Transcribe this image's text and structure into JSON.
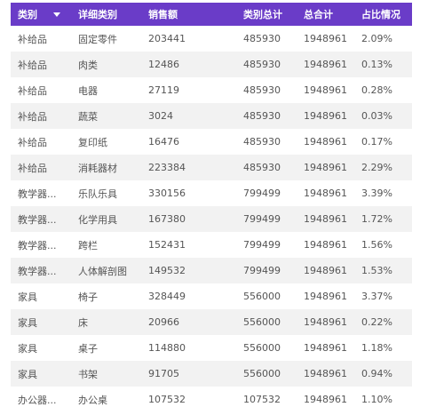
{
  "header": {
    "category": "类别",
    "detail_category": "详细类别",
    "sales": "销售额",
    "category_total": "类别总计",
    "grand_total": "总合计",
    "ratio": "占比情况"
  },
  "rows": [
    {
      "category": "补给品",
      "detail": "固定零件",
      "sales": "203441",
      "category_total": "485930",
      "grand_total": "1948961",
      "ratio": "2.09%"
    },
    {
      "category": "补给品",
      "detail": "肉类",
      "sales": "12486",
      "category_total": "485930",
      "grand_total": "1948961",
      "ratio": "0.13%"
    },
    {
      "category": "补给品",
      "detail": "电器",
      "sales": "27119",
      "category_total": "485930",
      "grand_total": "1948961",
      "ratio": "0.28%"
    },
    {
      "category": "补给品",
      "detail": "蔬菜",
      "sales": "3024",
      "category_total": "485930",
      "grand_total": "1948961",
      "ratio": "0.03%"
    },
    {
      "category": "补给品",
      "detail": "复印纸",
      "sales": "16476",
      "category_total": "485930",
      "grand_total": "1948961",
      "ratio": "0.17%"
    },
    {
      "category": "补给品",
      "detail": "消耗器材",
      "sales": "223384",
      "category_total": "485930",
      "grand_total": "1948961",
      "ratio": "2.29%"
    },
    {
      "category": "教学器...",
      "detail": "乐队乐具",
      "sales": "330156",
      "category_total": "799499",
      "grand_total": "1948961",
      "ratio": "3.39%"
    },
    {
      "category": "教学器...",
      "detail": "化学用具",
      "sales": "167380",
      "category_total": "799499",
      "grand_total": "1948961",
      "ratio": "1.72%"
    },
    {
      "category": "教学器...",
      "detail": "跨栏",
      "sales": "152431",
      "category_total": "799499",
      "grand_total": "1948961",
      "ratio": "1.56%"
    },
    {
      "category": "教学器...",
      "detail": "人体解剖图",
      "sales": "149532",
      "category_total": "799499",
      "grand_total": "1948961",
      "ratio": "1.53%"
    },
    {
      "category": "家具",
      "detail": "椅子",
      "sales": "328449",
      "category_total": "556000",
      "grand_total": "1948961",
      "ratio": "3.37%"
    },
    {
      "category": "家具",
      "detail": "床",
      "sales": "20966",
      "category_total": "556000",
      "grand_total": "1948961",
      "ratio": "0.22%"
    },
    {
      "category": "家具",
      "detail": "桌子",
      "sales": "114880",
      "category_total": "556000",
      "grand_total": "1948961",
      "ratio": "1.18%"
    },
    {
      "category": "家具",
      "detail": "书架",
      "sales": "91705",
      "category_total": "556000",
      "grand_total": "1948961",
      "ratio": "0.94%"
    },
    {
      "category": "办公器...",
      "detail": "办公桌",
      "sales": "107532",
      "category_total": "107532",
      "grand_total": "1948961",
      "ratio": "1.10%"
    }
  ],
  "icons": {
    "sort": "chevron-down-icon"
  },
  "colors": {
    "header_bg": "#6a3cc8",
    "stripe": "#f2f2f2",
    "text": "#555555"
  }
}
